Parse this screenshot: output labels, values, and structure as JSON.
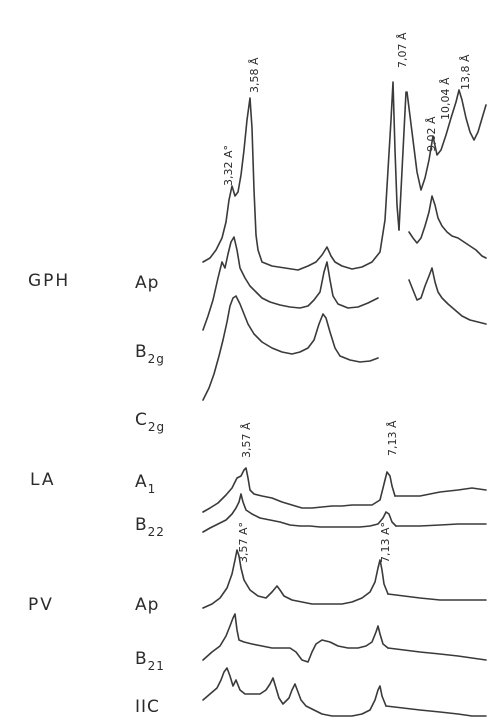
{
  "chart_data": {
    "type": "line",
    "title": "",
    "xlabel": "",
    "ylabel": "",
    "groups": [
      {
        "name": "GPH",
        "horizons": [
          {
            "base": "A",
            "sub": "p"
          },
          {
            "base": "B",
            "sub": "2g"
          },
          {
            "base": "C",
            "sub": "2g"
          }
        ],
        "peaks": [
          "3,32 A°",
          "3,58 Å",
          "7,07 Å",
          "9,02 Å",
          "10,04 Å",
          "13,8 Å"
        ]
      },
      {
        "name": "LA",
        "horizons": [
          {
            "base": "A",
            "sub": "1"
          },
          {
            "base": "B",
            "sub": "22"
          }
        ],
        "peaks": [
          "3,57 Å",
          "7,13 Å"
        ]
      },
      {
        "name": "PV",
        "horizons": [
          {
            "base": "A",
            "sub": "p"
          },
          {
            "base": "B",
            "sub": "21"
          },
          {
            "base": "IIC",
            "sub": ""
          }
        ],
        "peaks": [
          "3,57 A°",
          "7,13 A°"
        ]
      }
    ],
    "series": [
      {
        "group": "GPH",
        "horizon": "Ap",
        "peak_values_A": [
          3.32,
          3.58,
          7.07,
          9.02,
          10.04,
          13.8
        ]
      },
      {
        "group": "GPH",
        "horizon": "B2g",
        "peak_values_A": [
          3.58,
          7.07,
          10.04
        ]
      },
      {
        "group": "GPH",
        "horizon": "C2g",
        "peak_values_A": [
          3.58,
          7.07
        ]
      },
      {
        "group": "LA",
        "horizon": "A1",
        "peak_values_A": [
          3.57,
          7.13
        ]
      },
      {
        "group": "LA",
        "horizon": "B22",
        "peak_values_A": [
          3.57,
          7.13
        ]
      },
      {
        "group": "PV",
        "horizon": "Ap",
        "peak_values_A": [
          3.57,
          7.13
        ]
      },
      {
        "group": "PV",
        "horizon": "B21",
        "peak_values_A": [
          3.57,
          7.13
        ]
      },
      {
        "group": "PV",
        "horizon": "IIC",
        "peak_values_A": [
          3.57,
          7.13
        ]
      }
    ],
    "grid": false,
    "legend": "none",
    "colors": {
      "trace": "#3a3a3a",
      "text": "#2b2b2b",
      "background": "#ffffff"
    }
  }
}
